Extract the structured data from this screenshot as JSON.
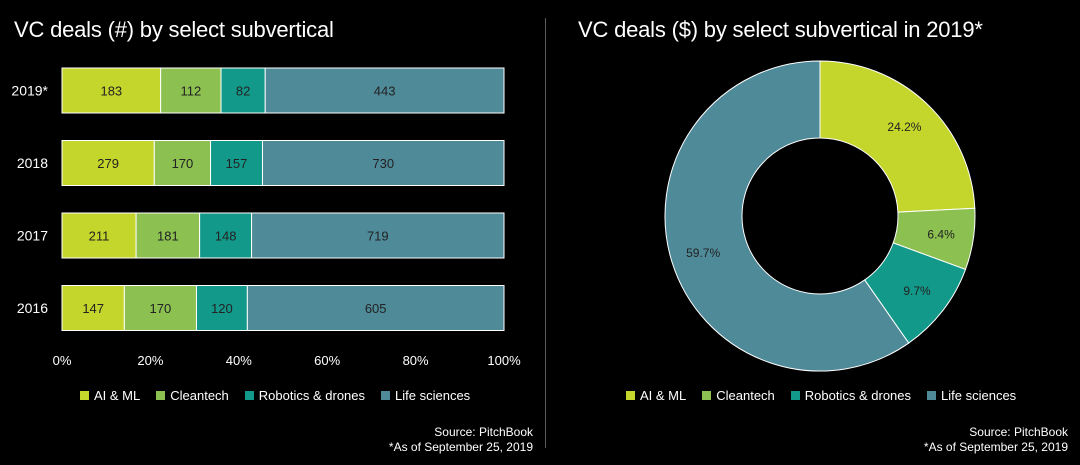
{
  "left": {
    "title": "VC deals (#) by select subvertical",
    "source": "Source: PitchBook",
    "footnote": "*As of September 25, 2019"
  },
  "right": {
    "title": "VC deals ($) by select subvertical  in 2019*",
    "source": "Source: PitchBook",
    "footnote": "*As of September 25, 2019"
  },
  "colors": {
    "ai_ml": "#c4d62c",
    "cleantech": "#8cc051",
    "robotics": "#13998a",
    "life_sciences": "#4f8a99",
    "background": "#000000"
  },
  "chart_data": [
    {
      "type": "bar",
      "orientation": "horizontal",
      "stacked": "percent",
      "title": "VC deals (#) by select subvertical",
      "categories": [
        "2019*",
        "2018",
        "2017",
        "2016"
      ],
      "series": [
        {
          "name": "AI & ML",
          "values": [
            183,
            279,
            211,
            147
          ]
        },
        {
          "name": "Cleantech",
          "values": [
            112,
            170,
            181,
            170
          ]
        },
        {
          "name": "Robotics & drones",
          "values": [
            82,
            157,
            148,
            120
          ]
        },
        {
          "name": "Life sciences",
          "values": [
            443,
            730,
            719,
            605
          ]
        }
      ],
      "x_ticks": [
        "0%",
        "20%",
        "40%",
        "60%",
        "80%",
        "100%"
      ],
      "xlim": [
        0,
        100
      ],
      "legend": "bottom",
      "grid": false
    },
    {
      "type": "pie",
      "donut": true,
      "title": "VC deals ($) by select subvertical  in 2019*",
      "labels": [
        "AI & ML",
        "Cleantech",
        "Robotics & drones",
        "Life sciences"
      ],
      "values": [
        24.2,
        6.4,
        9.7,
        59.7
      ],
      "value_labels": [
        "24.2%",
        "6.4%",
        "9.7%",
        "59.7%"
      ],
      "legend": "bottom"
    }
  ]
}
